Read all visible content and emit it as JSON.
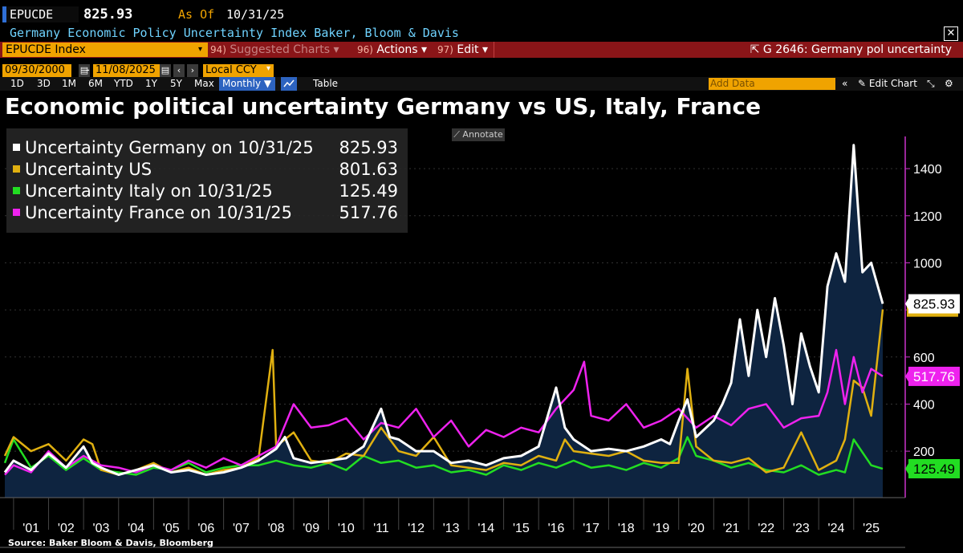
{
  "header": {
    "ticker": "EPUCDE",
    "last_value": "825.93",
    "as_of_label": "As Of",
    "as_of_date": "10/31/25",
    "subtitle": "Germany Economic Policy Uncertainty Index  Baker, Bloom & Davis",
    "close": "✕"
  },
  "toolbar": {
    "security": "EPUCDE Index",
    "suggested_num": "94)",
    "suggested": "Suggested Charts",
    "actions_num": "96)",
    "actions": "Actions",
    "edit_num": "97)",
    "edit": "Edit",
    "graph_title": "G 2646: Germany pol uncertainty",
    "start_date": "09/30/2000",
    "end_date": "11/08/2025",
    "currency": "Local CCY",
    "periods": [
      "1D",
      "3D",
      "1M",
      "6M",
      "YTD",
      "1Y",
      "5Y",
      "Max"
    ],
    "frequency": "Monthly ▼",
    "table": "Table",
    "add_data": "Add Data",
    "edit_chart": "Edit Chart"
  },
  "colors": {
    "germany": "#ffffff",
    "us": "#e0b010",
    "italy": "#22dd22",
    "france": "#ee22ee",
    "area": "#0e2440"
  },
  "chart_data": {
    "type": "line",
    "title": "Economic political uncertainty Germany vs US, Italy, France",
    "xlabel": "",
    "ylabel": "",
    "ylim": [
      0,
      1600
    ],
    "y_ticks": [
      200,
      400,
      600,
      800,
      1000,
      1200,
      1400
    ],
    "x_ticks": [
      "'01",
      "'02",
      "'03",
      "'04",
      "'05",
      "'06",
      "'07",
      "'08",
      "'09",
      "'10",
      "'11",
      "'12",
      "'13",
      "'14",
      "'15",
      "'16",
      "'17",
      "'18",
      "'19",
      "'20",
      "'21",
      "'22",
      "'23",
      "'24",
      "'25"
    ],
    "x_range": [
      2000.75,
      2025.83
    ],
    "legend": [
      {
        "name": "Uncertainty Germany on 10/31/25",
        "value": "825.93"
      },
      {
        "name": "Uncertainty US",
        "value": "801.63"
      },
      {
        "name": "Uncertainty Italy on 10/31/25",
        "value": "125.49"
      },
      {
        "name": "Uncertainty France on 10/31/25",
        "value": "517.76"
      }
    ],
    "last_labels": {
      "germany": "825.93",
      "france": "517.76",
      "italy": "125.49"
    },
    "series": [
      {
        "name": "Germany",
        "key": "germany",
        "x": [
          2000.75,
          2001.0,
          2001.5,
          2002.0,
          2002.5,
          2003.0,
          2003.25,
          2003.5,
          2004.0,
          2004.5,
          2005.0,
          2005.5,
          2006.0,
          2006.5,
          2007.0,
          2007.5,
          2008.0,
          2008.5,
          2008.75,
          2009.0,
          2009.5,
          2010.0,
          2010.5,
          2011.0,
          2011.5,
          2011.75,
          2012.0,
          2012.5,
          2013.0,
          2013.5,
          2014.0,
          2014.5,
          2015.0,
          2015.5,
          2016.0,
          2016.5,
          2016.75,
          2017.0,
          2017.5,
          2018.0,
          2018.5,
          2019.0,
          2019.5,
          2019.75,
          2020.0,
          2020.25,
          2020.5,
          2021.0,
          2021.25,
          2021.5,
          2021.75,
          2022.0,
          2022.25,
          2022.5,
          2022.75,
          2023.0,
          2023.25,
          2023.5,
          2023.75,
          2024.0,
          2024.25,
          2024.5,
          2024.75,
          2025.0,
          2025.25,
          2025.5,
          2025.83
        ],
        "y": [
          110,
          160,
          120,
          190,
          130,
          220,
          150,
          130,
          100,
          120,
          140,
          110,
          120,
          100,
          110,
          130,
          160,
          210,
          260,
          170,
          150,
          160,
          170,
          220,
          380,
          260,
          250,
          200,
          200,
          150,
          160,
          140,
          170,
          180,
          220,
          470,
          300,
          250,
          200,
          210,
          200,
          220,
          250,
          230,
          330,
          420,
          260,
          330,
          400,
          490,
          760,
          520,
          800,
          600,
          850,
          650,
          400,
          700,
          560,
          450,
          900,
          1040,
          920,
          1500,
          960,
          1000,
          826
        ]
      },
      {
        "name": "US",
        "key": "us",
        "x": [
          2000.75,
          2001.0,
          2001.5,
          2002.0,
          2002.5,
          2003.0,
          2003.25,
          2003.5,
          2004.0,
          2004.5,
          2005.0,
          2005.5,
          2006.0,
          2006.5,
          2007.0,
          2007.5,
          2008.0,
          2008.4,
          2008.5,
          2009.0,
          2009.5,
          2010.0,
          2010.5,
          2011.0,
          2011.5,
          2011.75,
          2012.0,
          2012.5,
          2013.0,
          2013.5,
          2014.0,
          2014.5,
          2015.0,
          2015.5,
          2016.0,
          2016.5,
          2016.75,
          2017.0,
          2017.5,
          2018.0,
          2018.5,
          2019.0,
          2019.5,
          2020.0,
          2020.25,
          2020.5,
          2021.0,
          2021.5,
          2022.0,
          2022.5,
          2023.0,
          2023.5,
          2024.0,
          2024.5,
          2024.75,
          2025.0,
          2025.25,
          2025.5,
          2025.83
        ],
        "y": [
          180,
          260,
          200,
          230,
          160,
          250,
          230,
          120,
          100,
          120,
          150,
          110,
          130,
          100,
          120,
          130,
          170,
          630,
          220,
          280,
          160,
          150,
          190,
          180,
          300,
          250,
          200,
          180,
          260,
          140,
          130,
          120,
          150,
          140,
          180,
          160,
          250,
          200,
          190,
          180,
          200,
          160,
          150,
          150,
          550,
          220,
          160,
          150,
          170,
          110,
          130,
          280,
          120,
          160,
          250,
          500,
          470,
          350,
          802
        ]
      },
      {
        "name": "Italy",
        "key": "italy",
        "x": [
          2000.75,
          2001.0,
          2001.5,
          2002.0,
          2002.5,
          2003.0,
          2003.5,
          2004.0,
          2004.5,
          2005.0,
          2005.5,
          2006.0,
          2006.5,
          2007.0,
          2007.5,
          2008.0,
          2008.5,
          2009.0,
          2009.5,
          2010.0,
          2010.5,
          2011.0,
          2011.5,
          2012.0,
          2012.5,
          2013.0,
          2013.5,
          2014.0,
          2014.5,
          2015.0,
          2015.5,
          2016.0,
          2016.5,
          2017.0,
          2017.5,
          2018.0,
          2018.5,
          2019.0,
          2019.5,
          2020.0,
          2020.25,
          2020.5,
          2021.0,
          2021.5,
          2022.0,
          2022.5,
          2023.0,
          2023.5,
          2024.0,
          2024.5,
          2024.75,
          2025.0,
          2025.5,
          2025.83
        ],
        "y": [
          150,
          250,
          130,
          180,
          120,
          170,
          120,
          110,
          100,
          130,
          120,
          150,
          110,
          130,
          140,
          140,
          160,
          140,
          130,
          150,
          120,
          180,
          150,
          160,
          130,
          140,
          110,
          120,
          100,
          140,
          120,
          150,
          130,
          160,
          130,
          140,
          120,
          150,
          130,
          170,
          260,
          180,
          160,
          130,
          150,
          120,
          110,
          140,
          100,
          120,
          110,
          250,
          140,
          125
        ]
      },
      {
        "name": "France",
        "key": "france",
        "x": [
          2000.75,
          2001.0,
          2001.5,
          2002.0,
          2002.5,
          2003.0,
          2003.5,
          2004.0,
          2004.5,
          2005.0,
          2005.5,
          2006.0,
          2006.5,
          2007.0,
          2007.5,
          2008.0,
          2008.5,
          2009.0,
          2009.5,
          2010.0,
          2010.5,
          2011.0,
          2011.5,
          2012.0,
          2012.5,
          2013.0,
          2013.5,
          2014.0,
          2014.5,
          2015.0,
          2015.5,
          2016.0,
          2016.5,
          2017.0,
          2017.3,
          2017.5,
          2018.0,
          2018.5,
          2019.0,
          2019.5,
          2020.0,
          2020.5,
          2021.0,
          2021.5,
          2022.0,
          2022.5,
          2023.0,
          2023.5,
          2024.0,
          2024.25,
          2024.5,
          2024.75,
          2025.0,
          2025.25,
          2025.5,
          2025.83
        ],
        "y": [
          100,
          140,
          110,
          200,
          130,
          180,
          140,
          130,
          110,
          140,
          120,
          160,
          130,
          170,
          140,
          180,
          220,
          400,
          300,
          310,
          340,
          250,
          320,
          300,
          380,
          260,
          330,
          220,
          290,
          260,
          300,
          280,
          380,
          460,
          580,
          350,
          330,
          400,
          300,
          330,
          380,
          300,
          350,
          310,
          380,
          400,
          300,
          340,
          350,
          450,
          630,
          400,
          600,
          450,
          550,
          518
        ]
      }
    ]
  },
  "footer": {
    "source": "Source: Baker Bloom & Davis, Bloomberg"
  }
}
